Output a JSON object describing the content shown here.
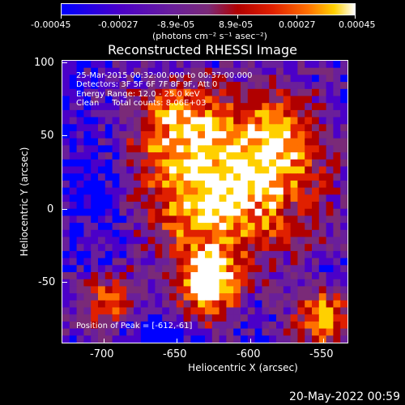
{
  "colorbar": {
    "ticks": [
      "-0.00045",
      "-0.00027",
      "-8.9e-05",
      "8.9e-05",
      "0.00027",
      "0.00045"
    ],
    "unit_label": "(photons cm⁻² s⁻¹ asec⁻²)",
    "colors": [
      "#0000ff",
      "#4b00c8",
      "#6a1f9a",
      "#7a2a78",
      "#b00000",
      "#e02000",
      "#ff7000",
      "#ffd000",
      "#ffffff"
    ]
  },
  "plot": {
    "title": "Reconstructed RHESSI Image",
    "xlabel": "Heliocentric X (arcsec)",
    "ylabel": "Heliocentric Y (arcsec)",
    "x_ticks": [
      "-700",
      "-650",
      "-600",
      "-550"
    ],
    "y_ticks": [
      "100",
      "50",
      "0",
      "-50"
    ],
    "info_lines": [
      "25-Mar-2015 00:32:00.000 to 00:37:00.000",
      "Detectors: 3F 5F 6F 7F 8F 9F, Att 0",
      "Energy Range: 12.0 - 25.0 keV",
      "Clean     Total counts: 8.06E+03"
    ],
    "peak_text": "Position of Peak = [-612,-61]"
  },
  "footer": {
    "timestamp": "20-May-2022 00:59"
  }
}
